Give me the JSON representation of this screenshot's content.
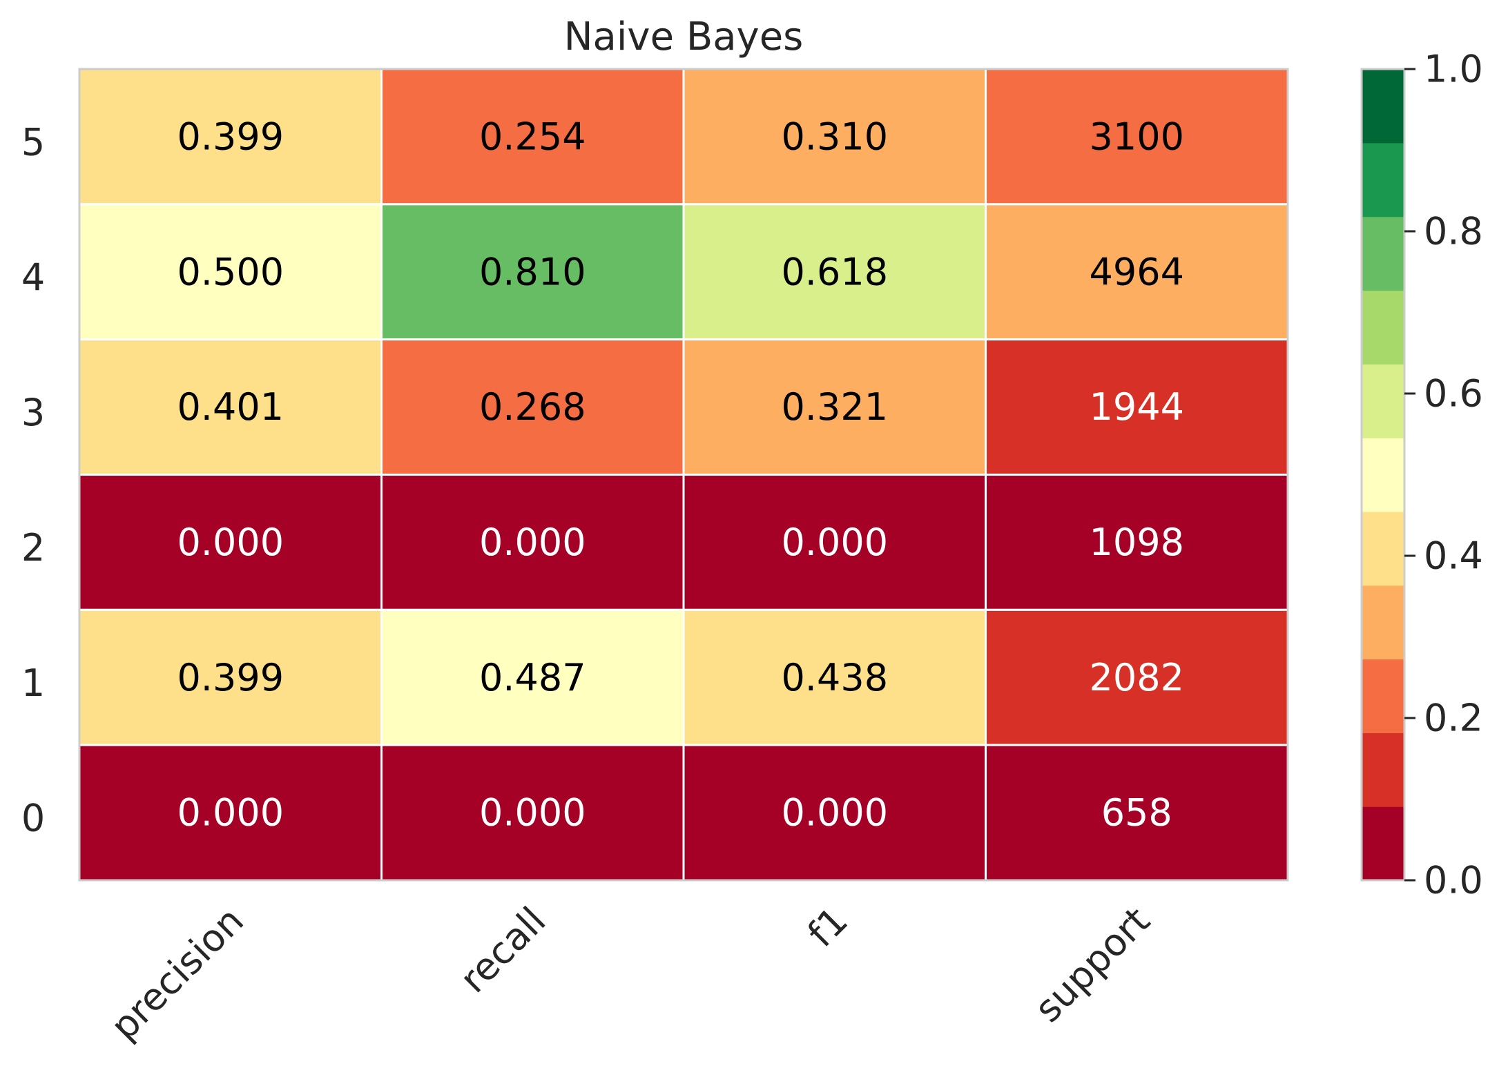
{
  "chart_data": {
    "type": "heatmap",
    "title": "Naive Bayes",
    "columns": [
      "precision",
      "recall",
      "f1",
      "support"
    ],
    "rows": [
      "5",
      "4",
      "3",
      "2",
      "1",
      "0"
    ],
    "values": [
      [
        0.399,
        0.254,
        0.31,
        3100
      ],
      [
        0.5,
        0.81,
        0.618,
        4964
      ],
      [
        0.401,
        0.268,
        0.321,
        1944
      ],
      [
        0.0,
        0.0,
        0.0,
        1098
      ],
      [
        0.399,
        0.487,
        0.438,
        2082
      ],
      [
        0.0,
        0.0,
        0.0,
        658
      ]
    ],
    "cell_labels": [
      [
        "0.399",
        "0.254",
        "0.310",
        "3100"
      ],
      [
        "0.500",
        "0.810",
        "0.618",
        "4964"
      ],
      [
        "0.401",
        "0.268",
        "0.321",
        "1944"
      ],
      [
        "0.000",
        "0.000",
        "0.000",
        "1098"
      ],
      [
        "0.399",
        "0.487",
        "0.438",
        "2082"
      ],
      [
        "0.000",
        "0.000",
        "0.000",
        "658"
      ]
    ],
    "support_color_fraction": [
      0.25,
      0.35,
      0.15,
      0.05,
      0.15,
      0.05
    ],
    "colorbar": {
      "range": [
        0.0,
        1.0
      ],
      "ticks": [
        "0.0",
        "0.2",
        "0.4",
        "0.6",
        "0.8",
        "1.0"
      ],
      "colors": [
        "#a50026",
        "#d73027",
        "#f46d43",
        "#fdae61",
        "#fee08b",
        "#ffffbf",
        "#d9ef8b",
        "#a6d96a",
        "#66bd63",
        "#1a9850",
        "#006837"
      ]
    },
    "grid": false
  }
}
